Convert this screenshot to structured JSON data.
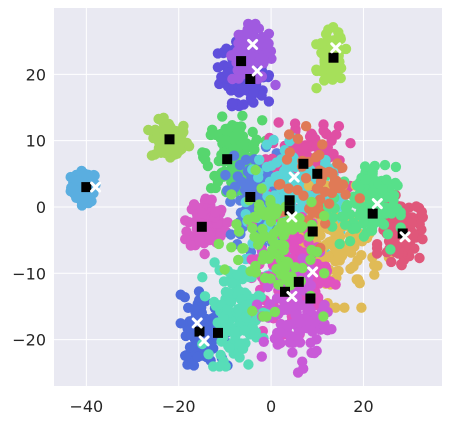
{
  "chart_data": {
    "type": "scatter",
    "title": "",
    "xlabel": "",
    "ylabel": "",
    "xlim": [
      -47,
      37
    ],
    "ylim": [
      -27,
      30
    ],
    "grid": true,
    "legend": "none",
    "background_color": "#e9e9f2",
    "grid_color": "#ffffff",
    "x_ticks": [
      -40,
      -20,
      0,
      20
    ],
    "x_tick_labels": [
      "−40",
      "−20",
      "0",
      "20"
    ],
    "y_ticks": [
      -20,
      -10,
      0,
      10,
      20
    ],
    "y_tick_labels": [
      "−20",
      "−10",
      "0",
      "10",
      "20"
    ],
    "clusters": [
      {
        "color": "#5aaee0",
        "cx": -40.5,
        "cy": 3,
        "sx": 1.4,
        "sy": 1.2,
        "n": 70
      },
      {
        "color": "#a3d65c",
        "cx": -22,
        "cy": 10,
        "sx": 2.0,
        "sy": 1.5,
        "n": 80
      },
      {
        "color": "#5f4fdc",
        "cx": -6,
        "cy": 20.5,
        "sx": 2.4,
        "sy": 2.3,
        "n": 150
      },
      {
        "color": "#a05ae0",
        "cx": -4,
        "cy": 23,
        "sx": 2.2,
        "sy": 2.0,
        "n": 110
      },
      {
        "color": "#a6e05a",
        "cx": 13,
        "cy": 22.5,
        "sx": 1.4,
        "sy": 2.0,
        "n": 70
      },
      {
        "color": "#56d66e",
        "cx": -8,
        "cy": 8,
        "sx": 3.0,
        "sy": 2.5,
        "n": 130
      },
      {
        "color": "#d85bc6",
        "cx": -14,
        "cy": -2.5,
        "sx": 2.0,
        "sy": 2.0,
        "n": 100
      },
      {
        "color": "#5a7ee0",
        "cx": -3,
        "cy": 1,
        "sx": 3.0,
        "sy": 3.5,
        "n": 130
      },
      {
        "color": "#e04fa4",
        "cx": 8,
        "cy": 6,
        "sx": 4.0,
        "sy": 3.0,
        "n": 180
      },
      {
        "color": "#5ad4d8",
        "cx": 6,
        "cy": 0,
        "sx": 5.0,
        "sy": 4.5,
        "n": 200
      },
      {
        "color": "#e0bb56",
        "cx": 14,
        "cy": -6,
        "sx": 5.0,
        "sy": 4.0,
        "n": 140
      },
      {
        "color": "#e0577a",
        "cx": 28,
        "cy": -3.5,
        "sx": 2.2,
        "sy": 2.3,
        "n": 120
      },
      {
        "color": "#57e08a",
        "cx": 20,
        "cy": 0,
        "sx": 3.5,
        "sy": 3.0,
        "n": 110
      },
      {
        "color": "#e052c0",
        "cx": 5,
        "cy": -10,
        "sx": 4.0,
        "sy": 4.0,
        "n": 170
      },
      {
        "color": "#4c6bdb",
        "cx": -14.5,
        "cy": -18.5,
        "sx": 2.2,
        "sy": 2.5,
        "n": 120
      },
      {
        "color": "#57ddb8",
        "cx": -8,
        "cy": -16,
        "sx": 3.0,
        "sy": 3.5,
        "n": 120
      },
      {
        "color": "#c95ad8",
        "cx": 5,
        "cy": -16,
        "sx": 3.5,
        "sy": 4.0,
        "n": 120
      },
      {
        "color": "#e07a56",
        "cx": 10,
        "cy": 3,
        "sx": 4.0,
        "sy": 4.0,
        "n": 50
      },
      {
        "color": "#7ce05a",
        "cx": 0,
        "cy": -5,
        "sx": 5.0,
        "sy": 5.0,
        "n": 100
      }
    ],
    "square_markers": [
      {
        "x": -40,
        "y": 3
      },
      {
        "x": -22,
        "y": 10.2
      },
      {
        "x": -6.5,
        "y": 22
      },
      {
        "x": -4.5,
        "y": 19.3
      },
      {
        "x": 13.5,
        "y": 22.5
      },
      {
        "x": -9.5,
        "y": 7.2
      },
      {
        "x": 7,
        "y": 6.5
      },
      {
        "x": 10,
        "y": 5
      },
      {
        "x": -4.5,
        "y": 1.5
      },
      {
        "x": 4,
        "y": 1
      },
      {
        "x": 4,
        "y": -0.5
      },
      {
        "x": -15,
        "y": -3
      },
      {
        "x": 9,
        "y": -3.7
      },
      {
        "x": 22,
        "y": -1
      },
      {
        "x": 28.5,
        "y": -4
      },
      {
        "x": 6,
        "y": -11.3
      },
      {
        "x": 3,
        "y": -12.8
      },
      {
        "x": 8.5,
        "y": -13.8
      },
      {
        "x": -15.5,
        "y": -18.8
      },
      {
        "x": -11.5,
        "y": -19
      }
    ],
    "x_markers": [
      {
        "x": -38,
        "y": 3
      },
      {
        "x": -4,
        "y": 24.5
      },
      {
        "x": -3,
        "y": 20.5
      },
      {
        "x": 14,
        "y": 24
      },
      {
        "x": 5,
        "y": 4.5
      },
      {
        "x": 4.5,
        "y": -1.5
      },
      {
        "x": 23,
        "y": 0.5
      },
      {
        "x": 29,
        "y": -4.5
      },
      {
        "x": 9,
        "y": -9.8
      },
      {
        "x": 4.5,
        "y": -13.5
      },
      {
        "x": -16,
        "y": -17.5
      },
      {
        "x": -14.5,
        "y": -20.2
      }
    ]
  }
}
